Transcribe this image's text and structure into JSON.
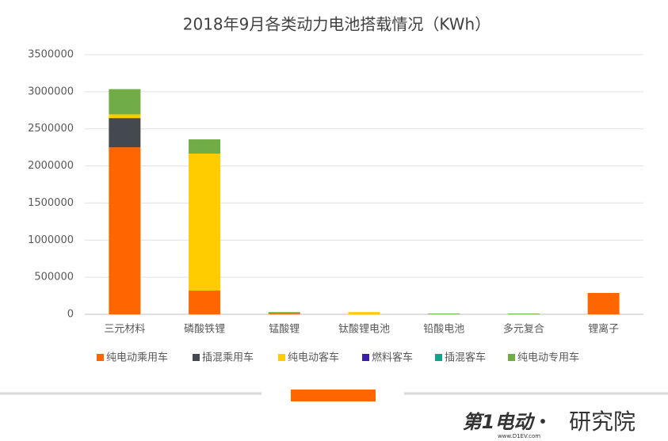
{
  "chart_data": {
    "type": "stacked_bar",
    "title": "2018年9月各类动力电池搭载情况（KWh）",
    "categories": [
      "三元材料",
      "磷酸铁锂",
      "锰酸锂",
      "钛酸锂电池",
      "铅酸电池",
      "多元复合",
      "锂离子"
    ],
    "series": [
      {
        "name": "纯电动乘用车",
        "color": "#ff6600",
        "values": [
          2250000,
          320000,
          10000,
          0,
          0,
          0,
          288000
        ]
      },
      {
        "name": "插混乘用车",
        "color": "#44494f",
        "values": [
          395000,
          0,
          0,
          0,
          0,
          0,
          0
        ]
      },
      {
        "name": "纯电动客车",
        "color": "#ffcc00",
        "values": [
          50000,
          1846000,
          0,
          30000,
          0,
          0,
          0
        ]
      },
      {
        "name": "燃料客车",
        "color": "#3a1fa6",
        "values": [
          0,
          0,
          0,
          0,
          0,
          0,
          0
        ]
      },
      {
        "name": "插混客车",
        "color": "#0fa38a",
        "values": [
          0,
          0,
          0,
          0,
          0,
          0,
          0
        ]
      },
      {
        "name": "纯电动专用车",
        "color": "#70ad47",
        "values": [
          340000,
          192000,
          20000,
          0,
          10000,
          10000,
          0
        ]
      }
    ],
    "ylim": [
      0,
      3500000
    ],
    "yticks": [
      0,
      500000,
      1000000,
      1500000,
      2000000,
      2500000,
      3000000,
      3500000
    ],
    "grid": true,
    "legend": "bottom"
  },
  "logo": {
    "brand": "第1电动",
    "dot": "•",
    "suffix": "研究院",
    "url": "www.D1EV.com"
  }
}
